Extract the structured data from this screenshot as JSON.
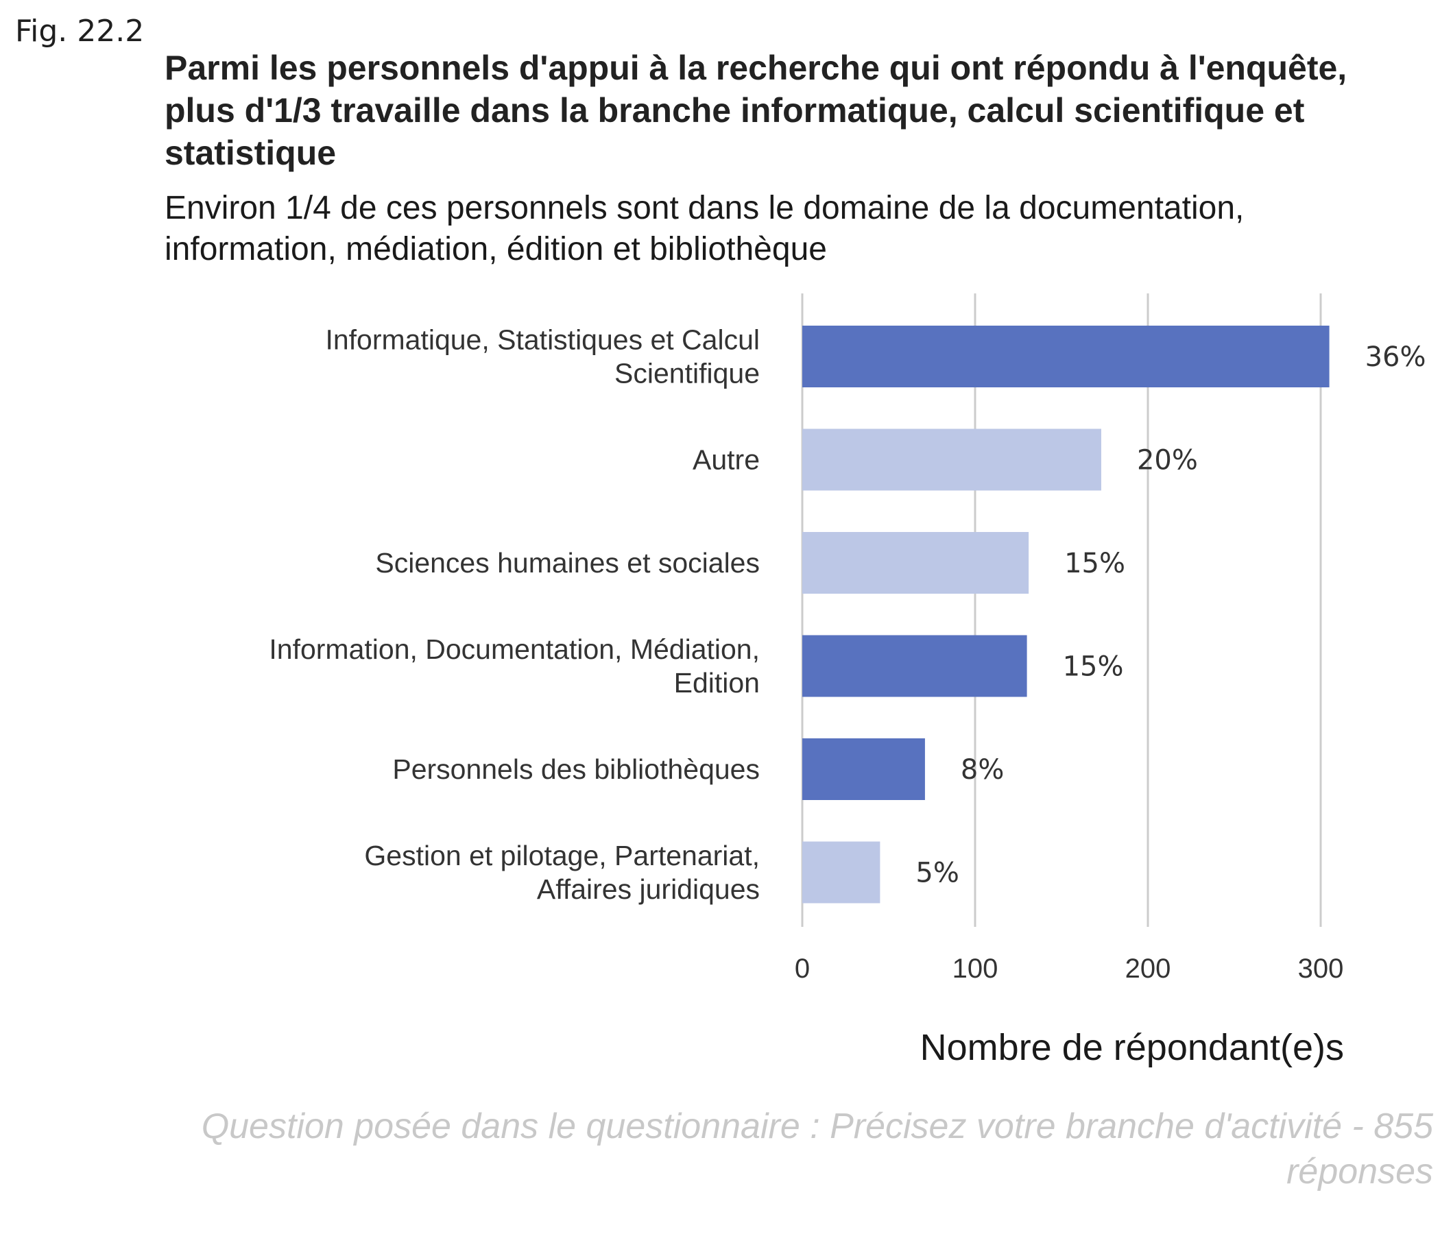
{
  "figure_label": "Fig. 22.2",
  "chart_data": {
    "type": "bar",
    "orientation": "horizontal",
    "title": "Parmi les personnels d'appui à la recherche qui ont répondu à l'enquête, plus d'1/3 travaille dans la branche informatique, calcul scientifique et statistique",
    "subtitle": "Environ 1/4 de ces personnels sont dans le domaine de la documentation, information, médiation, édition et bibliothèque",
    "xlabel": "Nombre de répondant(e)s",
    "ylabel": "",
    "xlim": [
      0,
      310
    ],
    "xticks": [
      0,
      100,
      200,
      300
    ],
    "grid": "vertical",
    "legend": "none",
    "caption": "Question posée dans le questionnaire : Précisez votre branche d'activité - 855 réponses",
    "colors": {
      "dark": "#5872bf",
      "light": "#bcc7e6",
      "grid": "#cccccc"
    },
    "bars": [
      {
        "category": [
          "Informatique, Statistiques et Calcul",
          "Scientifique"
        ],
        "value": 305,
        "label": "36%",
        "shade": "dark"
      },
      {
        "category": [
          "Autre"
        ],
        "value": 173,
        "label": "20%",
        "shade": "light"
      },
      {
        "category": [
          "Sciences humaines et sociales"
        ],
        "value": 131,
        "label": "15%",
        "shade": "light"
      },
      {
        "category": [
          "Information, Documentation, Médiation,",
          "Edition"
        ],
        "value": 130,
        "label": "15%",
        "shade": "dark"
      },
      {
        "category": [
          "Personnels des bibliothèques"
        ],
        "value": 71,
        "label": "8%",
        "shade": "dark"
      },
      {
        "category": [
          "Gestion et pilotage, Partenariat,",
          "Affaires juridiques"
        ],
        "value": 45,
        "label": "5%",
        "shade": "light"
      }
    ]
  }
}
